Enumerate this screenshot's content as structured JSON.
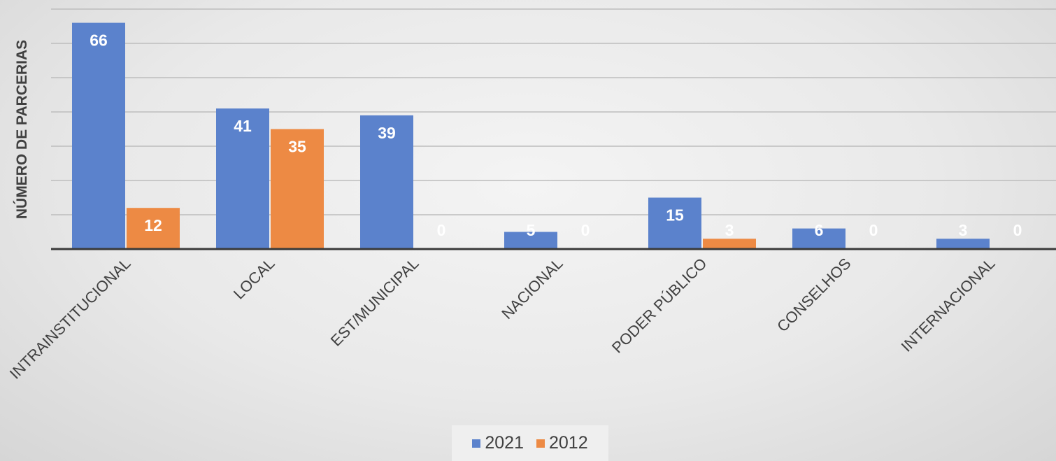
{
  "chart_data": {
    "type": "bar",
    "ylabel": "NÚMERO DE PARCERIAS",
    "xlabel": "",
    "title": "",
    "categories": [
      "INTRAINSTITUCIONAL",
      "LOCAL",
      "EST/MUNICIPAL",
      "NACIONAL",
      "PODER PÚBLICO",
      "CONSELHOS",
      "INTERNACIONAL"
    ],
    "series": [
      {
        "name": "2021",
        "color": "#5b82cc",
        "values": [
          66,
          41,
          39,
          5,
          15,
          6,
          3
        ]
      },
      {
        "name": "2012",
        "color": "#ed8a44",
        "values": [
          12,
          35,
          0,
          0,
          3,
          0,
          0
        ]
      }
    ],
    "ylim": [
      0,
      70
    ],
    "grid": true,
    "legend": "bottom",
    "data_labels": true
  }
}
